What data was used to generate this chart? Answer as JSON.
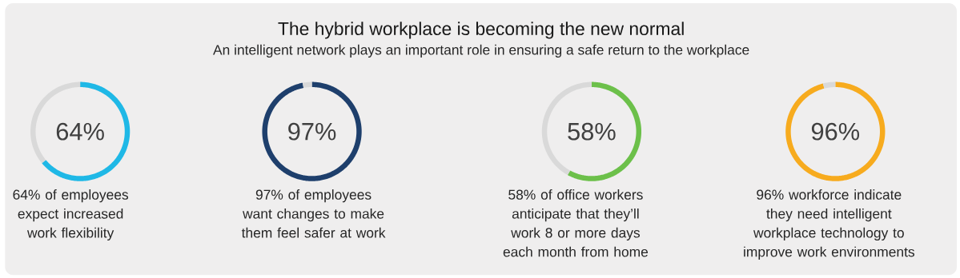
{
  "chart_data": [
    {
      "type": "donut",
      "title": "The hybrid workplace is becoming the new normal",
      "subtitle": "An intelligent network plays an important role in ensuring a safe return to the workplace",
      "categories": [
        null,
        null
      ],
      "values": [
        64,
        36
      ],
      "colors": [
        "#1fb8e6",
        "#d9d9d9"
      ],
      "annotations": [
        "64%",
        "64% of employees expect increased work flexibility"
      ]
    },
    {
      "type": "donut",
      "categories": [
        null,
        null
      ],
      "values": [
        97,
        3
      ],
      "colors": [
        "#1e3f6c",
        "#d9d9d9"
      ],
      "annotations": [
        "97%",
        "97% of employees want changes to make them feel safer at work"
      ]
    },
    {
      "type": "donut",
      "categories": [
        null,
        null
      ],
      "values": [
        58,
        42
      ],
      "colors": [
        "#6cc04a",
        "#d9d9d9"
      ],
      "annotations": [
        "58%",
        "58% of office workers anticipate that they’ll work 8 or more days each month from home"
      ]
    },
    {
      "type": "donut",
      "categories": [
        null,
        null
      ],
      "values": [
        96,
        4
      ],
      "colors": [
        "#f7ab1e",
        "#d9d9d9"
      ],
      "annotations": [
        "96%",
        "96% workforce indicate they need intelligent workplace technology to improve work environments"
      ]
    }
  ]
}
